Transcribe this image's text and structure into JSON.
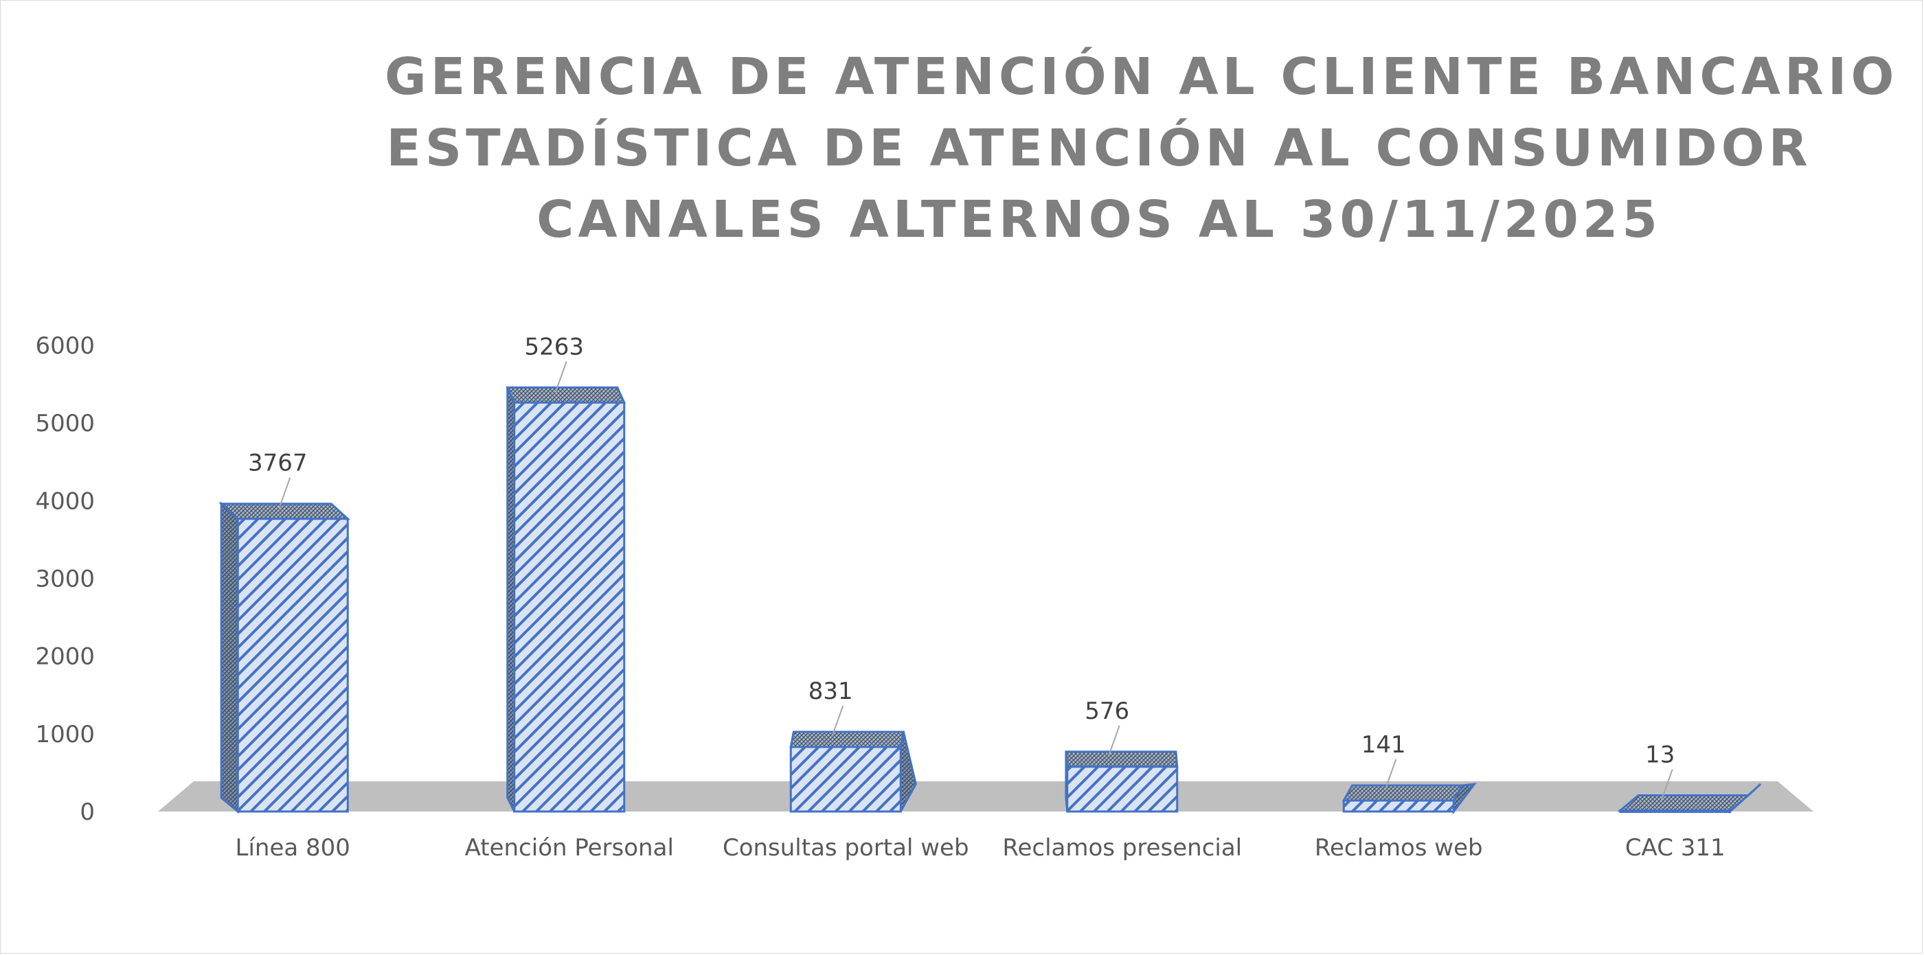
{
  "chart_data": {
    "type": "bar",
    "title_lines": [
      "GERENCIA DE ATENCIÓN AL CLIENTE BANCARIO",
      "ESTADÍSTICA DE ATENCIÓN AL CONSUMIDOR",
      "CANALES ALTERNOS AL 30/11/2025"
    ],
    "categories": [
      "Línea 800",
      "Atención Personal",
      "Consultas portal web",
      "Reclamos presencial",
      "Reclamos web",
      "CAC 311"
    ],
    "values": [
      3767,
      5263,
      831,
      576,
      141,
      13
    ],
    "data_labels": [
      "3767",
      "5263",
      "831",
      "576",
      "141",
      "13"
    ],
    "yticks": [
      "0",
      "1000",
      "2000",
      "3000",
      "4000",
      "5000",
      "6000"
    ],
    "ylim": [
      0,
      6000
    ],
    "xlabel": "",
    "ylabel": "",
    "style": "3d-column",
    "grid": false,
    "legend": "none",
    "colors": {
      "bar_stroke": "#4472c4",
      "bar_fill": "#dae3f3",
      "floor": "#bfbfbf",
      "title": "#7f7f7f",
      "text": "#595959"
    }
  }
}
